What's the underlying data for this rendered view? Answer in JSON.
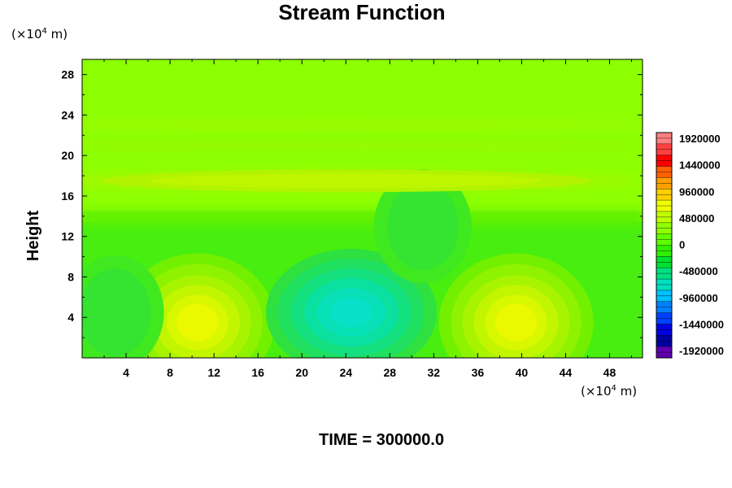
{
  "chart_data": {
    "type": "heatmap",
    "title": "Stream Function",
    "ylabel": "Height",
    "x_unit": "(×10",
    "x_unit_exp": "4",
    "x_unit_tail": " m)",
    "y_unit": "(×10",
    "y_unit_exp": "4",
    "y_unit_tail": " m)",
    "x_ticks": [
      "4",
      "8",
      "12",
      "16",
      "20",
      "24",
      "28",
      "32",
      "36",
      "40",
      "44",
      "48"
    ],
    "y_ticks": [
      "4",
      "8",
      "12",
      "16",
      "20",
      "24",
      "28"
    ],
    "xlim": [
      0,
      51
    ],
    "ylim": [
      0,
      29.5
    ],
    "colorbar": {
      "labels": [
        "1920000",
        "1440000",
        "960000",
        "480000",
        "0",
        "-480000",
        "-960000",
        "-1440000",
        "-1920000"
      ],
      "range": [
        -1920000,
        1920000
      ],
      "colors": [
        "#ff8080",
        "#ff4040",
        "#ff0000",
        "#ff6000",
        "#ffa000",
        "#ffd000",
        "#f0ff00",
        "#c0ff00",
        "#90ff00",
        "#60ff00",
        "#30f000",
        "#00e030",
        "#00e080",
        "#00e0c0",
        "#00c0ff",
        "#0080ff",
        "#0040ff",
        "#0000e0",
        "#0000a0",
        "#6000b0"
      ]
    },
    "features": [
      {
        "kind": "positive",
        "x": 10.5,
        "y": 3.5,
        "value": 600000
      },
      {
        "kind": "positive",
        "x": 39.5,
        "y": 3.5,
        "value": 600000
      },
      {
        "kind": "negative",
        "x": 24.5,
        "y": 4.5,
        "value": -520000
      },
      {
        "kind": "negative",
        "x": 3.0,
        "y": 4.5,
        "value": -150000
      },
      {
        "kind": "negative",
        "x": 31.0,
        "y": 13.0,
        "value": -120000
      },
      {
        "kind": "positive",
        "x": 24.0,
        "y": 17.5,
        "value": 200000
      }
    ],
    "annotation": "TIME = 300000.0"
  }
}
